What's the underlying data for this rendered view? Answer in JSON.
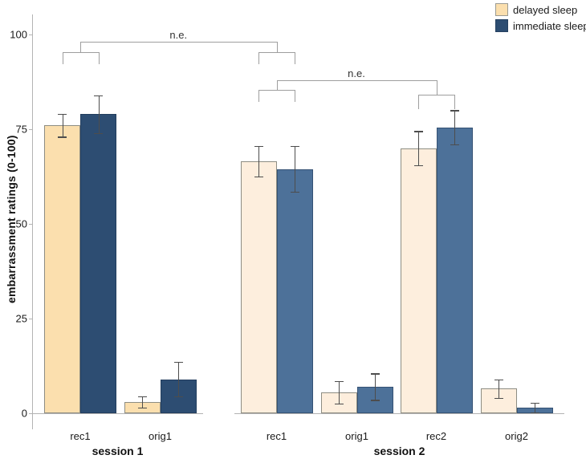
{
  "chart_data": {
    "type": "bar",
    "title": "",
    "ylabel": "embarrassment ratings (0-100)",
    "ylim": [
      0,
      100
    ],
    "yticks": [
      0,
      25,
      50,
      75,
      100
    ],
    "grid": false,
    "legend_position": "top-right",
    "series": [
      {
        "name": "delayed sleep",
        "color_session1": "#fbdfae",
        "color_session2": "#fdeedd",
        "border": "#8d8d83"
      },
      {
        "name": "immediate sleep",
        "color_session1": "#2d4d72",
        "color_session2": "#4d7199",
        "border": "#3e526b"
      }
    ],
    "panels": [
      {
        "label": "session 1",
        "groups": [
          {
            "category": "rec1",
            "values": [
              76,
              79
            ],
            "errors": [
              3,
              5
            ]
          },
          {
            "category": "orig1",
            "values": [
              3,
              9
            ],
            "errors": [
              1.5,
              4.5
            ]
          }
        ]
      },
      {
        "label": "session 2",
        "groups": [
          {
            "category": "rec1",
            "values": [
              66.5,
              64.5
            ],
            "errors": [
              4,
              6
            ]
          },
          {
            "category": "orig1",
            "values": [
              5.5,
              7
            ],
            "errors": [
              3,
              3.5
            ]
          },
          {
            "category": "rec2",
            "values": [
              70,
              75.5
            ],
            "errors": [
              4.5,
              4.5
            ]
          },
          {
            "category": "orig2",
            "values": [
              6.5,
              1.5
            ],
            "errors": [
              2.5,
              1.2
            ]
          }
        ]
      }
    ],
    "annotations": [
      {
        "label": "n.e.",
        "connects": [
          [
            "session 1",
            "rec1"
          ],
          [
            "session 2",
            "rec1"
          ]
        ]
      },
      {
        "label": "n.e.",
        "connects": [
          [
            "session 2",
            "rec1"
          ],
          [
            "session 2",
            "rec2"
          ]
        ]
      }
    ],
    "colors": {
      "background": "#ffffff",
      "axis_line": "#b3b3b3",
      "error_bar": "#4d4d4d",
      "bracket_line": "#9e9e9e",
      "text": "#1a1a1a"
    }
  }
}
